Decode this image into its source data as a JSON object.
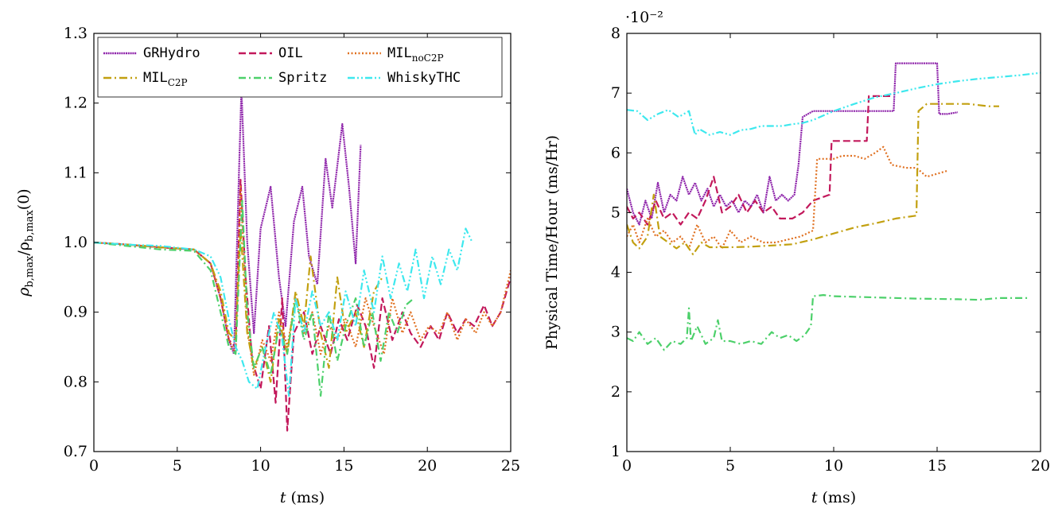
{
  "figure": {
    "legend_position": "top",
    "series_styles": [
      {
        "name": "GRHydro",
        "sub": "",
        "color": "#8e24aa",
        "dash": "2,0.8"
      },
      {
        "name": "OIL",
        "sub": "",
        "color": "#c2185b",
        "dash": "9,4"
      },
      {
        "name": "MIL",
        "sub": "noC2P",
        "color": "#e07020",
        "dash": "2,2.5"
      },
      {
        "name": "MIL",
        "sub": "C2P",
        "color": "#c2a010",
        "dash": "10,4,2,4"
      },
      {
        "name": "Spritz",
        "sub": "",
        "color": "#4cd06a",
        "dash": "9,4,2,4"
      },
      {
        "name": "WhiskyTHC",
        "sub": "",
        "color": "#3ee8ee",
        "dash": "9,3,2,3,2,3"
      }
    ]
  },
  "chart_data": [
    {
      "type": "line",
      "title": "",
      "xlabel_italic": "t",
      "xlabel_rest": "(ms)",
      "ylabel_parts": [
        "ρ",
        "b,max",
        "/ρ",
        "b,max",
        "(0)"
      ],
      "xlim": [
        0,
        25
      ],
      "ylim": [
        0.7,
        1.3
      ],
      "xticks": [
        0,
        5,
        10,
        15,
        20,
        25
      ],
      "yticks": [
        0.7,
        0.8,
        0.9,
        1.0,
        1.1,
        1.2,
        1.3
      ],
      "ytick_labels": [
        "0.7",
        "0.8",
        "0.9",
        "1.0",
        "1.1",
        "1.2",
        "1.3"
      ],
      "legend": [
        "GRHydro",
        "OIL",
        "MILnoC2P",
        "MILC2P",
        "Spritz",
        "WhiskyTHC"
      ],
      "series": [
        {
          "name": "GRHydro",
          "x": [
            0,
            2,
            4,
            6,
            7,
            7.6,
            8.1,
            8.4,
            8.7,
            8.85,
            9.2,
            9.6,
            10.0,
            10.6,
            11.1,
            11.5,
            12.0,
            12.5,
            12.9,
            13.4,
            13.9,
            14.3,
            14.9,
            15.3,
            15.7,
            16.0
          ],
          "y": [
            1.0,
            0.997,
            0.993,
            0.99,
            0.97,
            0.92,
            0.86,
            0.84,
            1.1,
            1.22,
            1.0,
            0.87,
            1.02,
            1.08,
            0.95,
            0.88,
            1.03,
            1.08,
            0.98,
            0.94,
            1.12,
            1.05,
            1.17,
            1.08,
            0.97,
            1.14
          ]
        },
        {
          "name": "OIL",
          "x": [
            0,
            2,
            4,
            6,
            7,
            7.6,
            8.1,
            8.5,
            8.8,
            9.1,
            9.5,
            10.0,
            10.5,
            10.9,
            11.3,
            11.6,
            12.0,
            12.6,
            13.1,
            13.6,
            14.2,
            14.7,
            15.2,
            15.8,
            16.3,
            16.8,
            17.3,
            17.9,
            18.5,
            19.0,
            19.6,
            20.2,
            20.7,
            21.2,
            21.8,
            22.3,
            22.8,
            23.4,
            23.9,
            24.4,
            25.0
          ],
          "y": [
            1.0,
            0.997,
            0.993,
            0.99,
            0.97,
            0.92,
            0.86,
            0.85,
            1.09,
            0.95,
            0.83,
            0.79,
            0.88,
            0.77,
            0.92,
            0.73,
            0.87,
            0.9,
            0.84,
            0.88,
            0.84,
            0.89,
            0.86,
            0.91,
            0.88,
            0.82,
            0.92,
            0.86,
            0.9,
            0.87,
            0.85,
            0.88,
            0.86,
            0.9,
            0.87,
            0.89,
            0.88,
            0.91,
            0.88,
            0.9,
            0.95
          ]
        },
        {
          "name": "MILnoC2P",
          "x": [
            0,
            2,
            4,
            6,
            7,
            7.6,
            8.1,
            8.5,
            8.8,
            9.2,
            9.6,
            10.1,
            10.6,
            11.1,
            11.6,
            12.1,
            12.6,
            13.1,
            13.6,
            14.1,
            14.6,
            15.1,
            15.7,
            16.3,
            16.8,
            17.4,
            17.9,
            18.5,
            19.0,
            19.6,
            20.1,
            20.7,
            21.2,
            21.8,
            22.3,
            22.9,
            23.4,
            23.9,
            24.4,
            25.0
          ],
          "y": [
            1.0,
            0.997,
            0.993,
            0.99,
            0.97,
            0.92,
            0.86,
            0.84,
            1.08,
            0.88,
            0.81,
            0.86,
            0.83,
            0.9,
            0.85,
            0.92,
            0.87,
            0.9,
            0.84,
            0.88,
            0.86,
            0.89,
            0.85,
            0.92,
            0.88,
            0.84,
            0.92,
            0.87,
            0.9,
            0.86,
            0.88,
            0.87,
            0.9,
            0.86,
            0.89,
            0.87,
            0.9,
            0.88,
            0.9,
            0.96
          ]
        },
        {
          "name": "MILC2P",
          "x": [
            0,
            2,
            4,
            6,
            7,
            7.6,
            8.1,
            8.5,
            8.8,
            9.2,
            9.6,
            10.1,
            10.6,
            11.1,
            11.6,
            12.1,
            12.6,
            13.0,
            13.6,
            14.1,
            14.6,
            15.1,
            15.7,
            16.2,
            16.8,
            17.3
          ],
          "y": [
            1.0,
            0.997,
            0.993,
            0.99,
            0.97,
            0.93,
            0.87,
            0.86,
            1.02,
            0.87,
            0.82,
            0.85,
            0.8,
            0.89,
            0.84,
            0.93,
            0.88,
            0.98,
            0.87,
            0.82,
            0.95,
            0.87,
            0.9,
            0.85,
            0.93,
            0.95
          ]
        },
        {
          "name": "Spritz",
          "x": [
            0,
            2,
            4,
            6,
            7,
            7.6,
            8.1,
            8.5,
            8.9,
            9.2,
            9.6,
            10.1,
            10.6,
            11.1,
            11.6,
            12.1,
            12.6,
            13.1,
            13.6,
            14.1,
            14.6,
            15.1,
            15.7,
            16.2,
            16.7,
            17.2,
            17.7,
            18.2,
            18.7,
            19.2
          ],
          "y": [
            1.0,
            0.995,
            0.99,
            0.988,
            0.96,
            0.9,
            0.85,
            0.84,
            1.06,
            0.9,
            0.82,
            0.85,
            0.81,
            0.88,
            0.84,
            0.92,
            0.86,
            0.9,
            0.78,
            0.9,
            0.83,
            0.88,
            0.92,
            0.85,
            0.9,
            0.83,
            0.9,
            0.87,
            0.91,
            0.92
          ]
        },
        {
          "name": "WhiskyTHC",
          "x": [
            0,
            2,
            4,
            6,
            7,
            7.6,
            8.1,
            8.5,
            8.9,
            9.3,
            9.8,
            10.3,
            10.8,
            11.3,
            11.7,
            12.1,
            12.6,
            13.1,
            13.6,
            14.1,
            14.6,
            15.1,
            15.7,
            16.2,
            16.8,
            17.3,
            17.8,
            18.3,
            18.8,
            19.3,
            19.8,
            20.3,
            20.8,
            21.3,
            21.8,
            22.3,
            22.7
          ],
          "y": [
            1.0,
            0.997,
            0.995,
            0.99,
            0.98,
            0.95,
            0.89,
            0.85,
            0.83,
            0.8,
            0.79,
            0.85,
            0.9,
            0.86,
            0.78,
            0.92,
            0.87,
            0.93,
            0.88,
            0.9,
            0.86,
            0.93,
            0.88,
            0.96,
            0.9,
            0.98,
            0.92,
            0.97,
            0.93,
            0.99,
            0.92,
            0.98,
            0.94,
            0.99,
            0.96,
            1.02,
            1.0
          ]
        }
      ]
    },
    {
      "type": "line",
      "title": "",
      "multiplier": "·10⁻²",
      "xlabel_italic": "t",
      "xlabel_rest": "(ms)",
      "ylabel": "Physical Time/Hour (ms/Hr)",
      "xlim": [
        0,
        20
      ],
      "ylim": [
        1,
        8
      ],
      "xticks": [
        0,
        5,
        10,
        15,
        20
      ],
      "yticks": [
        1,
        2,
        3,
        4,
        5,
        6,
        7,
        8
      ],
      "ytick_labels": [
        "1",
        "2",
        "3",
        "4",
        "5",
        "6",
        "7",
        "8"
      ],
      "series": [
        {
          "name": "GRHydro",
          "x": [
            0,
            0.3,
            0.6,
            0.9,
            1.2,
            1.5,
            1.8,
            2.1,
            2.4,
            2.7,
            3.0,
            3.3,
            3.6,
            3.9,
            4.2,
            4.5,
            4.8,
            5.1,
            5.4,
            5.7,
            6.0,
            6.3,
            6.6,
            6.9,
            7.2,
            7.5,
            7.8,
            8.1,
            8.3,
            8.5,
            9.0,
            10,
            11,
            12,
            12.9,
            13.0,
            13.5,
            14.5,
            15.0,
            15.1,
            15.5,
            16.0
          ],
          "y": [
            5.4,
            5.0,
            4.8,
            5.2,
            4.9,
            5.5,
            5.0,
            5.3,
            5.2,
            5.6,
            5.3,
            5.5,
            5.2,
            5.4,
            5.1,
            5.3,
            5.1,
            5.2,
            5.0,
            5.2,
            5.1,
            5.3,
            5.0,
            5.6,
            5.2,
            5.3,
            5.2,
            5.3,
            5.8,
            6.6,
            6.7,
            6.7,
            6.7,
            6.7,
            6.7,
            7.5,
            7.5,
            7.5,
            7.5,
            6.65,
            6.65,
            6.68
          ]
        },
        {
          "name": "OIL",
          "x": [
            0,
            0.3,
            0.6,
            1.0,
            1.4,
            1.8,
            2.2,
            2.6,
            3.0,
            3.4,
            3.8,
            4.2,
            4.6,
            5.0,
            5.4,
            5.8,
            6.2,
            6.6,
            7.0,
            7.4,
            8.0,
            8.5,
            9.0,
            9.8,
            9.9,
            11.0,
            11.6,
            11.7,
            12.2,
            12.8
          ],
          "y": [
            5.1,
            4.9,
            5.0,
            4.8,
            5.2,
            4.9,
            5.0,
            4.8,
            5.0,
            4.9,
            5.2,
            5.6,
            5.0,
            5.1,
            5.3,
            5.0,
            5.2,
            5.0,
            5.1,
            4.9,
            4.9,
            5.0,
            5.2,
            5.3,
            6.2,
            6.2,
            6.2,
            6.95,
            6.95,
            6.95
          ]
        },
        {
          "name": "MILnoC2P",
          "x": [
            0,
            0.3,
            0.6,
            1.0,
            1.4,
            1.8,
            2.2,
            2.6,
            3.0,
            3.4,
            3.8,
            4.2,
            4.6,
            5.0,
            5.5,
            6.0,
            6.6,
            7.2,
            7.8,
            8.4,
            9.0,
            9.2,
            10.0,
            10.4,
            11.0,
            11.5,
            12.0,
            12.4,
            12.8,
            13.5,
            14.0,
            14.5,
            15.0,
            15.5
          ],
          "y": [
            4.6,
            4.8,
            4.5,
            4.9,
            4.6,
            4.7,
            4.5,
            4.6,
            4.4,
            4.8,
            4.5,
            4.6,
            4.4,
            4.7,
            4.5,
            4.6,
            4.5,
            4.5,
            4.55,
            4.6,
            4.7,
            5.9,
            5.9,
            5.95,
            5.95,
            5.9,
            6.0,
            6.1,
            5.8,
            5.75,
            5.75,
            5.6,
            5.65,
            5.7
          ]
        },
        {
          "name": "MILC2P",
          "x": [
            0,
            0.3,
            0.6,
            1.0,
            1.3,
            1.6,
            2.0,
            2.4,
            2.8,
            3.2,
            3.6,
            4.0,
            5.0,
            6.0,
            7.0,
            8.0,
            9.0,
            10.0,
            11.0,
            12.0,
            13.0,
            14.0,
            14.1,
            14.5,
            15.5,
            16.5,
            17.5,
            18.0
          ],
          "y": [
            4.8,
            4.5,
            4.4,
            4.6,
            5.3,
            4.6,
            4.5,
            4.4,
            4.5,
            4.3,
            4.5,
            4.42,
            4.42,
            4.43,
            4.45,
            4.47,
            4.55,
            4.65,
            4.75,
            4.82,
            4.9,
            4.95,
            6.7,
            6.82,
            6.82,
            6.82,
            6.78,
            6.78
          ]
        },
        {
          "name": "Spritz",
          "x": [
            0,
            0.3,
            0.6,
            1.0,
            1.4,
            1.8,
            2.2,
            2.6,
            2.9,
            3.0,
            3.1,
            3.4,
            3.8,
            4.2,
            4.4,
            4.6,
            5.0,
            5.5,
            6.0,
            6.5,
            7.0,
            7.4,
            7.8,
            8.2,
            8.6,
            8.9,
            9.0,
            9.5,
            10,
            12,
            14,
            16,
            17,
            18,
            19.4
          ],
          "y": [
            2.9,
            2.85,
            3.0,
            2.8,
            2.9,
            2.7,
            2.85,
            2.8,
            2.9,
            3.4,
            2.85,
            3.1,
            2.8,
            2.9,
            3.2,
            2.85,
            2.85,
            2.8,
            2.85,
            2.8,
            3.0,
            2.9,
            2.95,
            2.85,
            2.95,
            3.1,
            3.6,
            3.62,
            3.6,
            3.58,
            3.56,
            3.55,
            3.54,
            3.57,
            3.57
          ]
        },
        {
          "name": "WhiskyTHC",
          "x": [
            0,
            0.5,
            1.0,
            1.5,
            2.0,
            2.5,
            3.0,
            3.3,
            3.5,
            4.0,
            4.5,
            5.0,
            5.5,
            6.0,
            6.5,
            7.0,
            7.5,
            8.0,
            8.5,
            9.0,
            10,
            11,
            12,
            13,
            14,
            15,
            16,
            17,
            18,
            19,
            20
          ],
          "y": [
            6.72,
            6.7,
            6.55,
            6.65,
            6.72,
            6.6,
            6.7,
            6.3,
            6.4,
            6.3,
            6.35,
            6.3,
            6.38,
            6.4,
            6.45,
            6.45,
            6.45,
            6.48,
            6.5,
            6.55,
            6.7,
            6.82,
            6.93,
            7.0,
            7.08,
            7.15,
            7.2,
            7.24,
            7.27,
            7.3,
            7.34
          ]
        }
      ]
    }
  ]
}
